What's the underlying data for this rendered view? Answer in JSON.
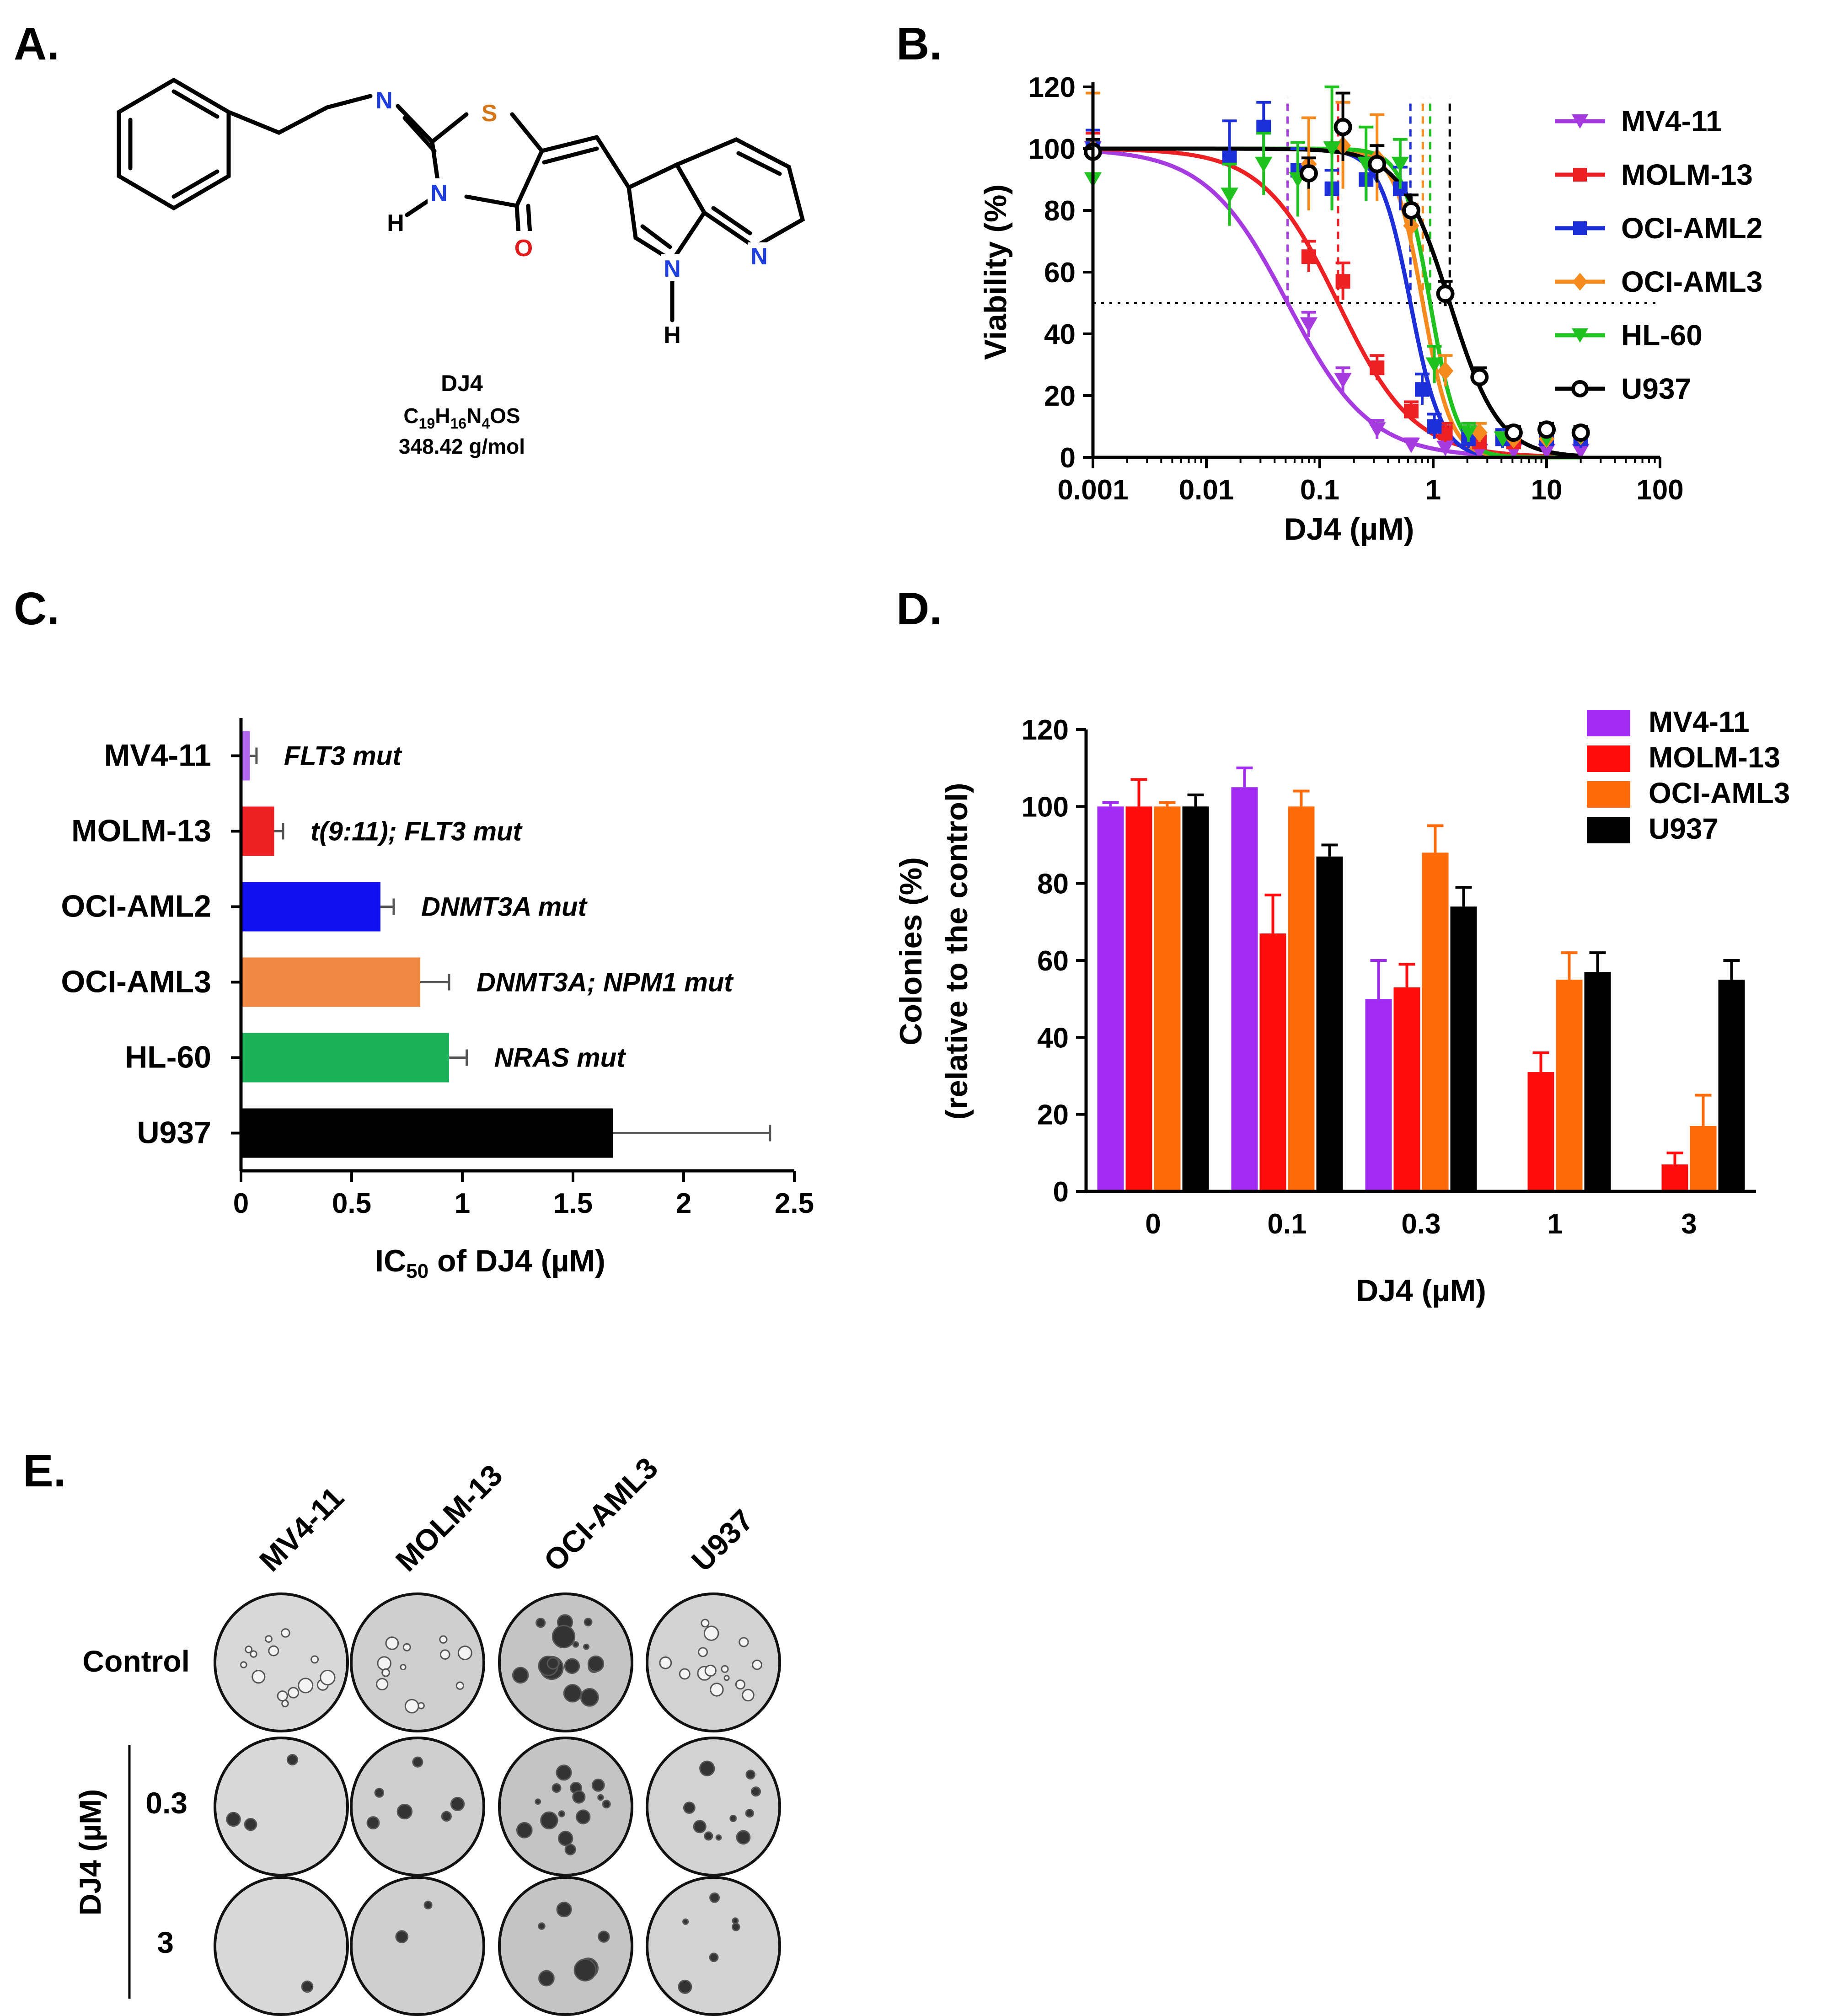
{
  "panels": {
    "a": {
      "letter": "A.",
      "compound_name": "DJ4",
      "formula_parts": [
        "C",
        "19",
        "H",
        "16",
        "N",
        "4",
        "OS"
      ],
      "mass": "348.42 g/mol",
      "atoms": [
        "N",
        "S",
        "N",
        "H",
        "O",
        "N",
        "N",
        "H"
      ],
      "atom_colors": {
        "N": "#1f3fe0",
        "S": "#d4771a",
        "O": "#e01b1b",
        "C": "#000000"
      }
    },
    "b": {
      "letter": "B."
    },
    "c": {
      "letter": "C."
    },
    "d": {
      "letter": "D."
    },
    "e": {
      "letter": "E.",
      "columns": [
        "MV4-11",
        "MOLM-13",
        "OCI-AML3",
        "U937"
      ],
      "rows": [
        "Control",
        "0.3",
        "3"
      ],
      "dose_axis_label": "DJ4 (µM)"
    }
  },
  "chart_data": [
    {
      "panel": "B",
      "type": "scatter",
      "xlabel": "DJ4 (µM)",
      "ylabel": "Viability (%)",
      "x_scale": "log",
      "xlim": [
        0.001,
        100
      ],
      "ylim": [
        0,
        120
      ],
      "x_ticks": [
        0.001,
        0.01,
        0.1,
        1,
        10,
        100
      ],
      "x_tick_labels": [
        "0.001",
        "0.01",
        "0.1",
        "1",
        "10",
        "100"
      ],
      "y_ticks": [
        0,
        20,
        40,
        60,
        80,
        100,
        120
      ],
      "reference_line_y": 50,
      "legend_position": "right",
      "series": [
        {
          "name": "MV4-11",
          "color": "#a63be0",
          "marker": "triangle-down",
          "ic50": 0.052,
          "hill": 1.2,
          "x": [
            0.001,
            0.08,
            0.16,
            0.32,
            0.64,
            1.28,
            2.56,
            5.12,
            10,
            20
          ],
          "y": [
            100,
            43,
            25,
            9,
            4,
            3,
            2,
            2,
            2,
            2
          ],
          "err": [
            6,
            4,
            4,
            3,
            2,
            2,
            2,
            2,
            2,
            2
          ]
        },
        {
          "name": "MOLM-13",
          "color": "#ed2024",
          "marker": "square",
          "ic50": 0.145,
          "hill": 1.3,
          "x": [
            0.001,
            0.08,
            0.16,
            0.32,
            0.64,
            1.28,
            2.56,
            5.12,
            10,
            20
          ],
          "y": [
            100,
            65,
            57,
            29,
            15,
            8,
            5,
            5,
            6,
            7
          ],
          "err": [
            5,
            5,
            6,
            4,
            3,
            3,
            2,
            2,
            2,
            2
          ]
        },
        {
          "name": "OCI-AML2",
          "color": "#1d2fd8",
          "marker": "square",
          "ic50": 0.63,
          "hill": 3.2,
          "x": [
            0.001,
            0.016,
            0.032,
            0.064,
            0.128,
            0.256,
            0.512,
            0.8,
            1.024,
            2.048,
            4.096,
            10,
            20
          ],
          "y": [
            100,
            97,
            107,
            93,
            87,
            90,
            87,
            22,
            10,
            6,
            6,
            6,
            6
          ],
          "err": [
            6,
            12,
            8,
            7,
            6,
            7,
            7,
            5,
            4,
            3,
            3,
            3,
            3
          ]
        },
        {
          "name": "OCI-AML3",
          "color": "#f58a1f",
          "marker": "diamond",
          "ic50": 0.81,
          "hill": 3.5,
          "x": [
            0.001,
            0.08,
            0.16,
            0.32,
            0.64,
            1.28,
            2.56,
            5.12,
            10,
            20
          ],
          "y": [
            100,
            95,
            101,
            97,
            75,
            28,
            8,
            6,
            6,
            7
          ],
          "err": [
            18,
            15,
            14,
            14,
            7,
            5,
            3,
            2,
            2,
            2
          ]
        },
        {
          "name": "HL-60",
          "color": "#1fc21f",
          "marker": "triangle-down",
          "ic50": 0.94,
          "hill": 3.6,
          "x": [
            0.001,
            0.016,
            0.032,
            0.064,
            0.128,
            0.256,
            0.512,
            1.024,
            2.048,
            4.096,
            10,
            20
          ],
          "y": [
            90,
            85,
            95,
            90,
            100,
            95,
            95,
            30,
            8,
            6,
            6,
            7
          ],
          "err": [
            8,
            10,
            10,
            12,
            20,
            12,
            8,
            6,
            3,
            2,
            2,
            2
          ]
        },
        {
          "name": "U937",
          "color": "#000000",
          "marker": "circle-open",
          "ic50": 1.4,
          "hill": 2.0,
          "x": [
            0.001,
            0.08,
            0.16,
            0.32,
            0.64,
            1.28,
            2.56,
            5.12,
            10,
            20
          ],
          "y": [
            99,
            92,
            107,
            95,
            80,
            53,
            26,
            8,
            9,
            8
          ],
          "err": [
            4,
            5,
            11,
            6,
            5,
            4,
            3,
            2,
            2,
            2
          ]
        }
      ]
    },
    {
      "panel": "C",
      "type": "bar",
      "orientation": "horizontal",
      "xlabel_main": "IC",
      "xlabel_sub": "50",
      "xlabel_rest": " of DJ4 (µM)",
      "xlim": [
        0,
        2.5
      ],
      "x_ticks": [
        0,
        0.5,
        1,
        1.5,
        2,
        2.5
      ],
      "categories": [
        "MV4-11",
        "MOLM-13",
        "OCI-AML2",
        "OCI-AML3",
        "HL-60",
        "U937"
      ],
      "values": [
        0.04,
        0.15,
        0.63,
        0.81,
        0.94,
        1.68
      ],
      "errors": [
        0.03,
        0.04,
        0.06,
        0.13,
        0.08,
        0.71
      ],
      "colors": [
        "#b368f0",
        "#ed2024",
        "#1010f0",
        "#ee8842",
        "#1cb25a",
        "#000000"
      ],
      "annotations": [
        "FLT3 mut",
        "t(9:11); FLT3 mut",
        "DNMT3A mut",
        "DNMT3A; NPM1 mut",
        "NRAS mut",
        ""
      ]
    },
    {
      "panel": "D",
      "type": "bar",
      "xlabel": "DJ4 (µM)",
      "ylabel_line1": "Colonies (%)",
      "ylabel_line2": "(relative to the control)",
      "ylim": [
        0,
        120
      ],
      "y_ticks": [
        0,
        20,
        40,
        60,
        80,
        100,
        120
      ],
      "categories": [
        "0",
        "0.1",
        "0.3",
        "1",
        "3"
      ],
      "legend_position": "top-right",
      "series": [
        {
          "name": "MV4-11",
          "color": "#a12bf0",
          "values": [
            100,
            105,
            50,
            0,
            0
          ],
          "errors": [
            1,
            5,
            10,
            0,
            0
          ]
        },
        {
          "name": "MOLM-13",
          "color": "#ff0d0d",
          "values": [
            100,
            67,
            53,
            31,
            7
          ],
          "errors": [
            7,
            10,
            6,
            5,
            3
          ]
        },
        {
          "name": "OCI-AML3",
          "color": "#ff6a0a",
          "values": [
            100,
            100,
            88,
            55,
            17
          ],
          "errors": [
            1,
            4,
            7,
            7,
            8
          ]
        },
        {
          "name": "U937",
          "color": "#000000",
          "values": [
            100,
            87,
            74,
            57,
            55
          ],
          "errors": [
            3,
            3,
            5,
            5,
            5
          ]
        }
      ]
    }
  ]
}
